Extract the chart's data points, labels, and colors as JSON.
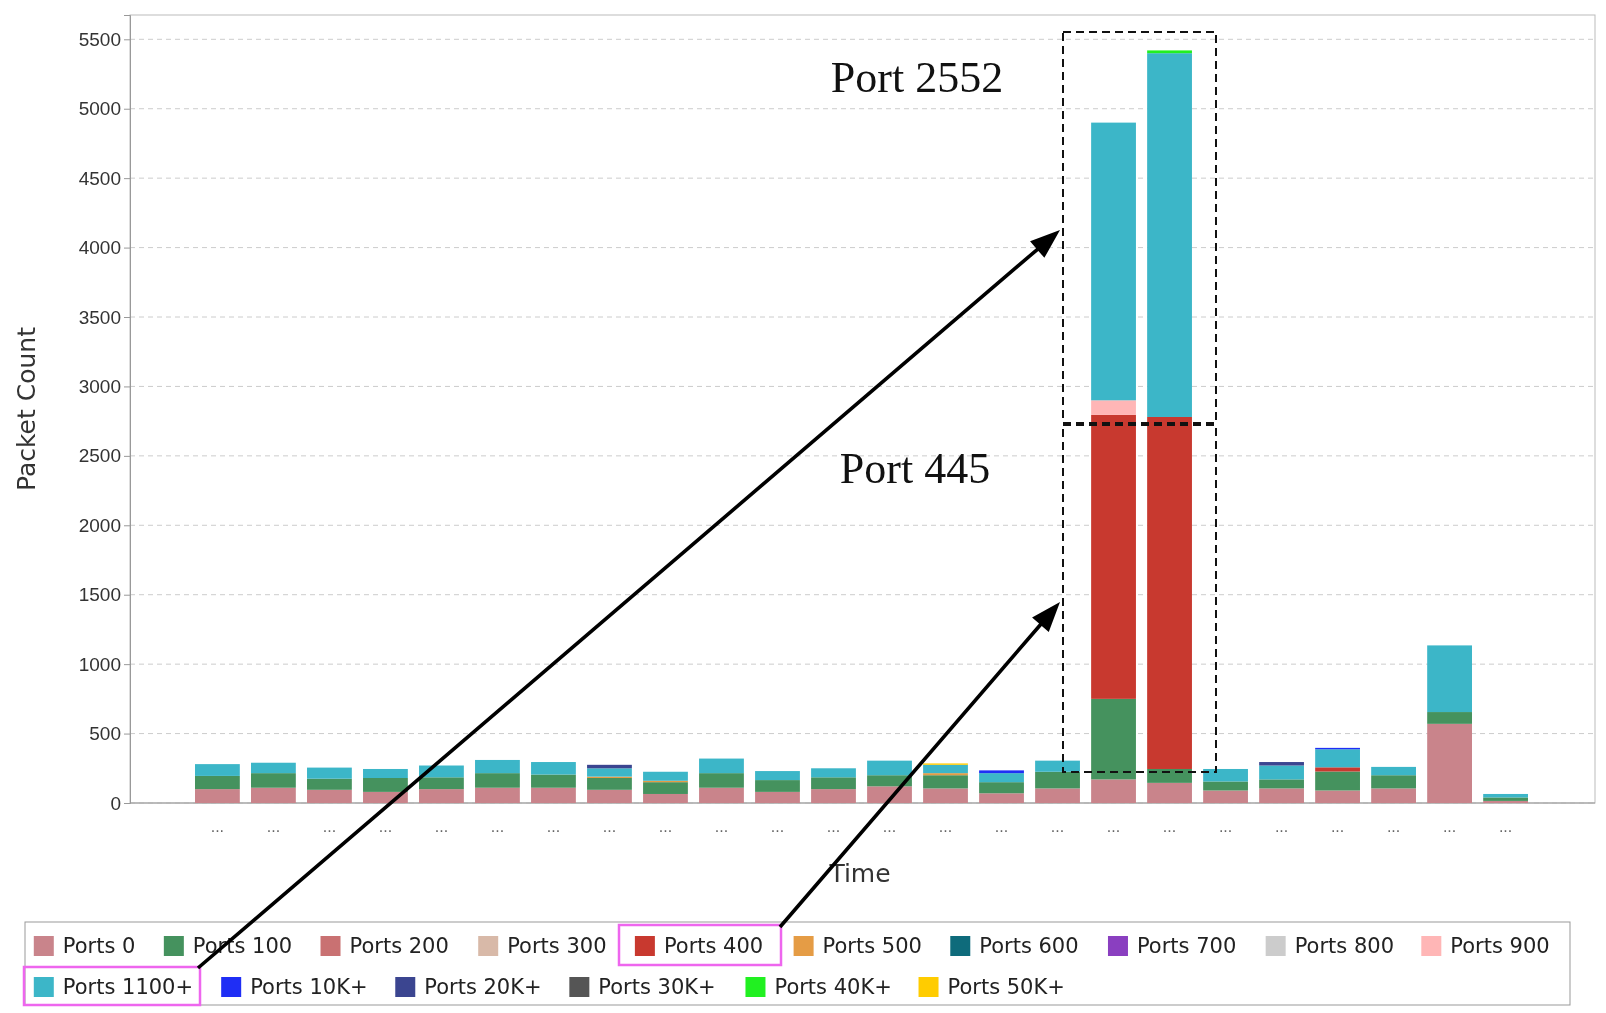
{
  "chart_data": {
    "type": "bar",
    "stacked": true,
    "xlabel": "Time",
    "ylabel": "Packet Count",
    "categories": [
      "...",
      "...",
      "...",
      "...",
      "...",
      "...",
      "...",
      "...",
      "...",
      "...",
      "...",
      "...",
      "...",
      "...",
      "...",
      "...",
      "...",
      "...",
      "...",
      "...",
      "...",
      "...",
      "...",
      "..."
    ],
    "series": [
      {
        "name": "Ports 0",
        "color": "#c9848b",
        "values": [
          100,
          110,
          95,
          80,
          100,
          110,
          110,
          95,
          65,
          110,
          80,
          100,
          120,
          105,
          70,
          105,
          170,
          145,
          90,
          105,
          90,
          105,
          570,
          15
        ]
      },
      {
        "name": "Ports 100",
        "color": "#45925e",
        "values": [
          95,
          105,
          80,
          100,
          85,
          105,
          95,
          85,
          85,
          105,
          85,
          85,
          80,
          95,
          80,
          120,
          580,
          100,
          65,
          65,
          137,
          95,
          85,
          25
        ]
      },
      {
        "name": "Ports 200",
        "color": "#c97172",
        "values": [
          0,
          0,
          0,
          0,
          0,
          0,
          0,
          0,
          0,
          0,
          0,
          0,
          0,
          0,
          0,
          0,
          0,
          0,
          0,
          0,
          0,
          0,
          0,
          0
        ]
      },
      {
        "name": "Ports 300",
        "color": "#d8b9a8",
        "values": [
          0,
          0,
          0,
          0,
          0,
          0,
          0,
          0,
          0,
          0,
          0,
          0,
          0,
          0,
          0,
          0,
          0,
          0,
          0,
          0,
          0,
          0,
          0,
          0
        ]
      },
      {
        "name": "Ports 400",
        "color": "#c8392f",
        "values": [
          0,
          0,
          0,
          0,
          0,
          0,
          0,
          0,
          0,
          0,
          0,
          0,
          0,
          0,
          0,
          0,
          2045,
          2535,
          0,
          0,
          30,
          0,
          0,
          0
        ]
      },
      {
        "name": "Ports 500",
        "color": "#e59c45",
        "values": [
          0,
          0,
          0,
          0,
          0,
          0,
          0,
          10,
          10,
          0,
          0,
          0,
          0,
          15,
          0,
          0,
          0,
          0,
          0,
          0,
          0,
          0,
          0,
          0
        ]
      },
      {
        "name": "Ports 600",
        "color": "#0e6b7b",
        "values": [
          0,
          0,
          0,
          0,
          0,
          0,
          0,
          0,
          0,
          0,
          0,
          0,
          0,
          0,
          0,
          0,
          0,
          0,
          0,
          0,
          0,
          0,
          0,
          0
        ]
      },
      {
        "name": "Ports 700",
        "color": "#8a3fc0",
        "values": [
          0,
          0,
          0,
          0,
          0,
          0,
          0,
          0,
          0,
          0,
          0,
          0,
          0,
          0,
          0,
          0,
          0,
          0,
          0,
          0,
          0,
          0,
          0,
          0
        ]
      },
      {
        "name": "Ports 800",
        "color": "#cccccc",
        "values": [
          0,
          0,
          0,
          0,
          0,
          0,
          0,
          0,
          0,
          0,
          0,
          0,
          0,
          0,
          0,
          0,
          0,
          0,
          0,
          0,
          0,
          0,
          0,
          0
        ]
      },
      {
        "name": "Ports 900",
        "color": "#ffb6b6",
        "values": [
          0,
          0,
          0,
          0,
          0,
          0,
          0,
          0,
          0,
          0,
          0,
          0,
          0,
          0,
          0,
          0,
          105,
          0,
          0,
          0,
          0,
          0,
          0,
          0
        ]
      },
      {
        "name": "Ports 1100+",
        "color": "#3cb6c8",
        "values": [
          85,
          75,
          80,
          65,
          85,
          95,
          90,
          60,
          65,
          105,
          65,
          65,
          105,
          60,
          65,
          80,
          2000,
          2620,
          90,
          100,
          130,
          60,
          480,
          25
        ]
      },
      {
        "name": "Ports 10K+",
        "color": "#1f2ef5",
        "values": [
          0,
          0,
          0,
          0,
          0,
          0,
          0,
          0,
          0,
          0,
          0,
          0,
          0,
          0,
          20,
          0,
          0,
          0,
          0,
          0,
          10,
          0,
          0,
          0
        ]
      },
      {
        "name": "Ports 20K+",
        "color": "#3b4590",
        "values": [
          0,
          0,
          0,
          0,
          0,
          0,
          0,
          25,
          0,
          0,
          0,
          0,
          0,
          0,
          0,
          0,
          0,
          0,
          0,
          25,
          0,
          0,
          0,
          0
        ]
      },
      {
        "name": "Ports 30K+",
        "color": "#555555",
        "values": [
          0,
          0,
          0,
          0,
          0,
          0,
          0,
          0,
          0,
          0,
          0,
          0,
          0,
          0,
          0,
          0,
          0,
          0,
          0,
          0,
          0,
          0,
          0,
          0
        ]
      },
      {
        "name": "Ports 40K+",
        "color": "#21f021",
        "values": [
          0,
          0,
          0,
          0,
          0,
          0,
          0,
          0,
          0,
          0,
          0,
          0,
          0,
          0,
          0,
          0,
          0,
          20,
          0,
          0,
          0,
          0,
          0,
          0
        ]
      },
      {
        "name": "Ports 50K+",
        "color": "#ffcc00",
        "values": [
          0,
          0,
          0,
          0,
          0,
          0,
          0,
          0,
          0,
          0,
          0,
          0,
          0,
          10,
          0,
          0,
          0,
          0,
          0,
          0,
          0,
          0,
          0,
          0
        ]
      }
    ],
    "ylim": [
      0,
      5675
    ],
    "yticks": [
      0,
      500,
      1000,
      1500,
      2000,
      2500,
      3000,
      3500,
      4000,
      4500,
      5000,
      5500
    ],
    "grid": "y",
    "legend": "bottom",
    "annotations": [
      "Port 2552",
      "Port 445"
    ]
  }
}
